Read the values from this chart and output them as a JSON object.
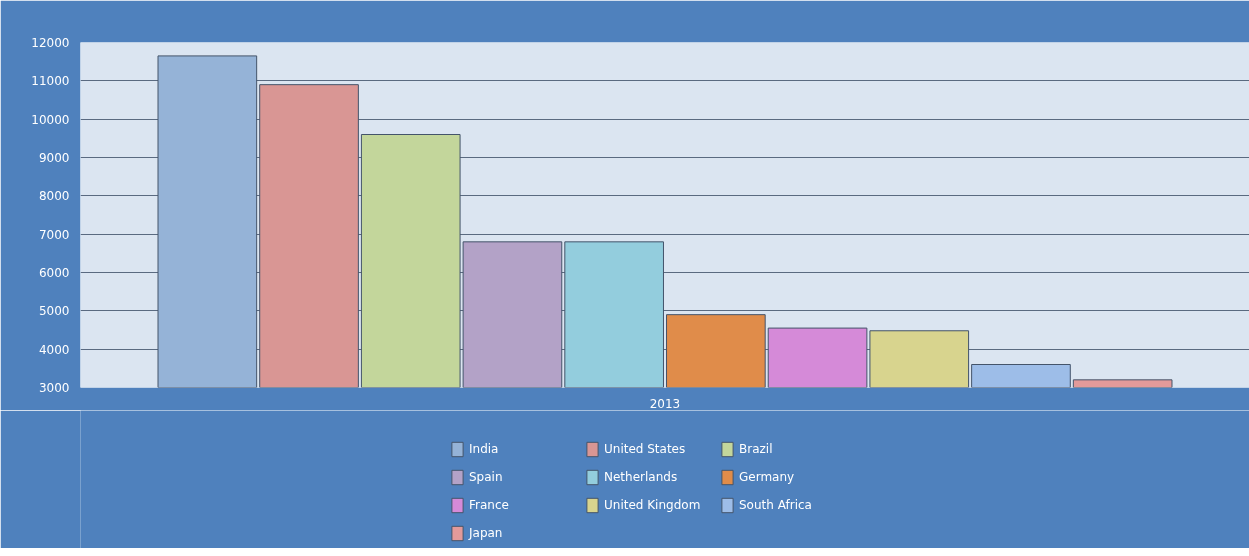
{
  "chart_data": {
    "type": "bar",
    "categories": [
      "2013"
    ],
    "series": [
      {
        "name": "India",
        "color": "#95b3d7",
        "values": [
          11650
        ]
      },
      {
        "name": "United States",
        "color": "#d99694",
        "values": [
          10900
        ]
      },
      {
        "name": "Brazil",
        "color": "#c3d69b",
        "values": [
          9600
        ]
      },
      {
        "name": "Spain",
        "color": "#b3a2c7",
        "values": [
          6800
        ]
      },
      {
        "name": "Netherlands",
        "color": "#93cddd",
        "values": [
          6800
        ]
      },
      {
        "name": "Germany",
        "color": "#e08c4a",
        "values": [
          4900
        ]
      },
      {
        "name": "France",
        "color": "#d58ad8",
        "values": [
          4550
        ]
      },
      {
        "name": "United Kingdom",
        "color": "#d8d48e",
        "values": [
          4480
        ]
      },
      {
        "name": "South Africa",
        "color": "#9dbde8",
        "values": [
          3600
        ]
      },
      {
        "name": "Japan",
        "color": "#e39a9a",
        "values": [
          3200
        ]
      }
    ],
    "ylim": [
      3000,
      12000
    ],
    "yticks": [
      3000,
      4000,
      5000,
      6000,
      7000,
      8000,
      9000,
      10000,
      11000,
      12000
    ],
    "grid": "y",
    "legend": "bottom"
  }
}
